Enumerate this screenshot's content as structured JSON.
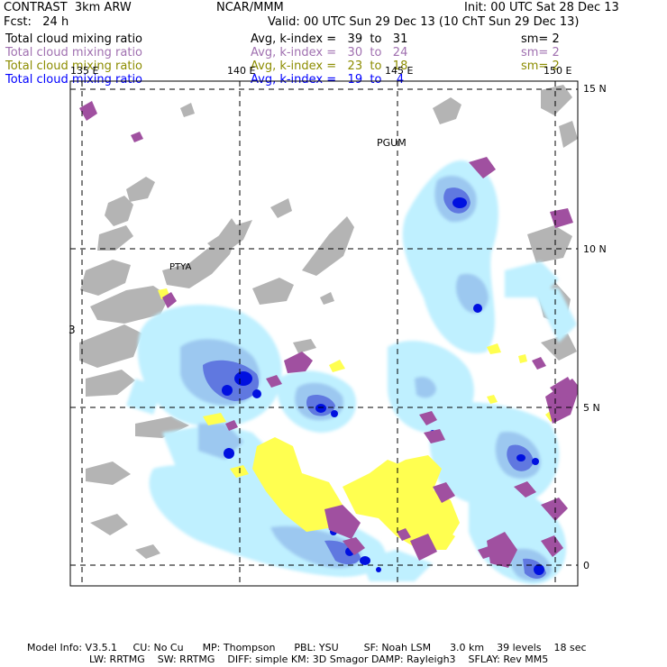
{
  "header": {
    "model": "CONTRAST  3km ARW",
    "org": "NCAR/MMM",
    "init": "Init: 00 UTC Sat 28 Dec 13",
    "fcst": "Fcst:   24 h",
    "valid": "Valid: 00 UTC Sun 29 Dec 13 (10 ChT Sun 29 Dec 13)"
  },
  "fields": [
    {
      "name": "Total cloud mixing ratio",
      "range": "Avg, k-index =   39  to   31",
      "sm": "sm= 2",
      "color": "#000000"
    },
    {
      "name": "Total cloud mixing ratio",
      "range": "Avg, k-index =   30  to   24",
      "sm": "sm= 2",
      "color": "#a070b0"
    },
    {
      "name": "Total cloud mixing ratio",
      "range": "Avg, k-index =   23  to   18",
      "sm": "sm= 2",
      "color": "#8c8c00"
    },
    {
      "name": "Total cloud mixing ratio",
      "range": "Avg, k-index =   19  to    4",
      "sm": "",
      "color": "#0000ff"
    }
  ],
  "axes": {
    "lon_labels": [
      "135 E",
      "140 E",
      "145 E",
      "150 E"
    ],
    "lat_labels": [
      "15 N",
      "10 N",
      "5 N",
      "0"
    ]
  },
  "places": {
    "pguam": "PGUM",
    "ptya": "PTYA",
    "edge": "3"
  },
  "colors": {
    "gray_cloud": "#b4b4b4",
    "purple_cloud": "#a050a0",
    "yellow_cloud": "#ffff50",
    "light_blue_cloud": "#bff0ff",
    "mid_blue_cloud": "#9cc8f0",
    "blue_cloud": "#6078e0",
    "dark_blue_cloud": "#0010e0"
  },
  "footer": {
    "line1": "Model Info: V3.5.1     CU: No Cu      MP: Thompson      PBL: YSU        SF: Noah LSM      3.0 km    39 levels    18 sec",
    "line2": "LW: RRTMG    SW: RRTMG    DIFF: simple KM: 3D Smagor DAMP: Rayleigh3    SFLAY: Rev MM5"
  }
}
